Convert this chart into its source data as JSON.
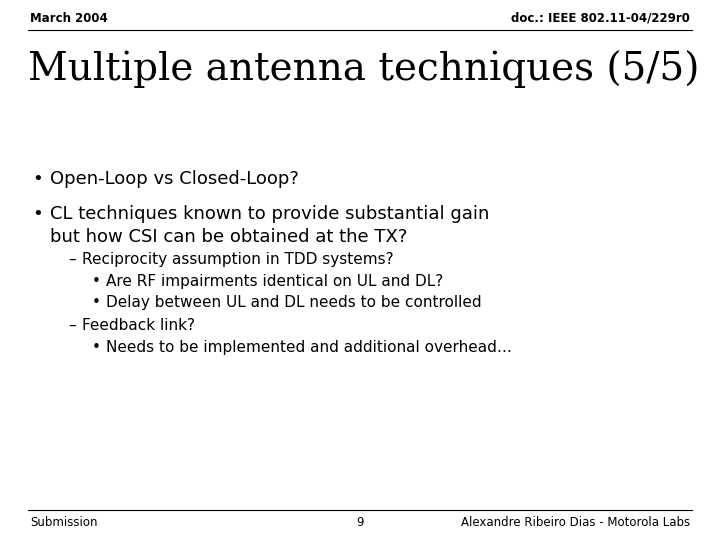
{
  "header_left": "March 2004",
  "header_right": "doc.: IEEE 802.11-04/229r0",
  "title": "Multiple antenna techniques (5/5)",
  "footer_left": "Submission",
  "footer_center": "9",
  "footer_right": "Alexandre Ribeiro Dias - Motorola Labs",
  "background_color": "#ffffff",
  "text_color": "#000000",
  "header_fontsize": 8.5,
  "title_fontsize": 28,
  "body_fontsize": 13,
  "sub_fontsize": 11,
  "footer_fontsize": 8.5,
  "bullet1": "Open-Loop vs Closed-Loop?",
  "bullet2_line1": "CL techniques known to provide substantial gain",
  "bullet2_line2": "but how CSI can be obtained at the TX?",
  "dash1": "Reciprocity assumption in TDD systems?",
  "sub_bullet1": "Are RF impairments identical on UL and DL?",
  "sub_bullet2": "Delay between UL and DL needs to be controlled",
  "dash2": "Feedback link?",
  "sub_bullet3": "Needs to be implemented and additional overhead…"
}
